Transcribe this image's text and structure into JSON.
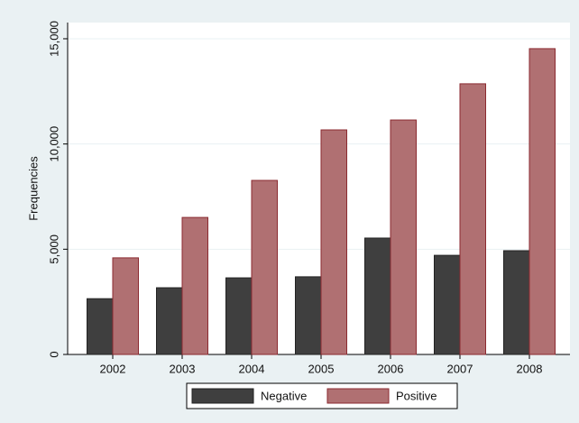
{
  "chart_data": {
    "type": "bar",
    "y_label": "Frequencies",
    "categories": [
      "2002",
      "2003",
      "2004",
      "2005",
      "2006",
      "2007",
      "2008"
    ],
    "series": [
      {
        "name": "Negative",
        "color": "#3f3f3f",
        "values": [
          2650,
          3170,
          3640,
          3690,
          5530,
          4710,
          4930
        ]
      },
      {
        "name": "Positive",
        "color": "#b07072",
        "values": [
          4590,
          6510,
          8270,
          10670,
          11140,
          12860,
          14530
        ]
      }
    ],
    "ylim": [
      0,
      15770
    ],
    "yticks": [
      0,
      {
        "value": 5000,
        "label": "5,000"
      },
      {
        "value": 10000,
        "label": "10,000"
      },
      {
        "value": 15000,
        "label": "15,000"
      }
    ],
    "grid": true,
    "legend": "bottom"
  }
}
